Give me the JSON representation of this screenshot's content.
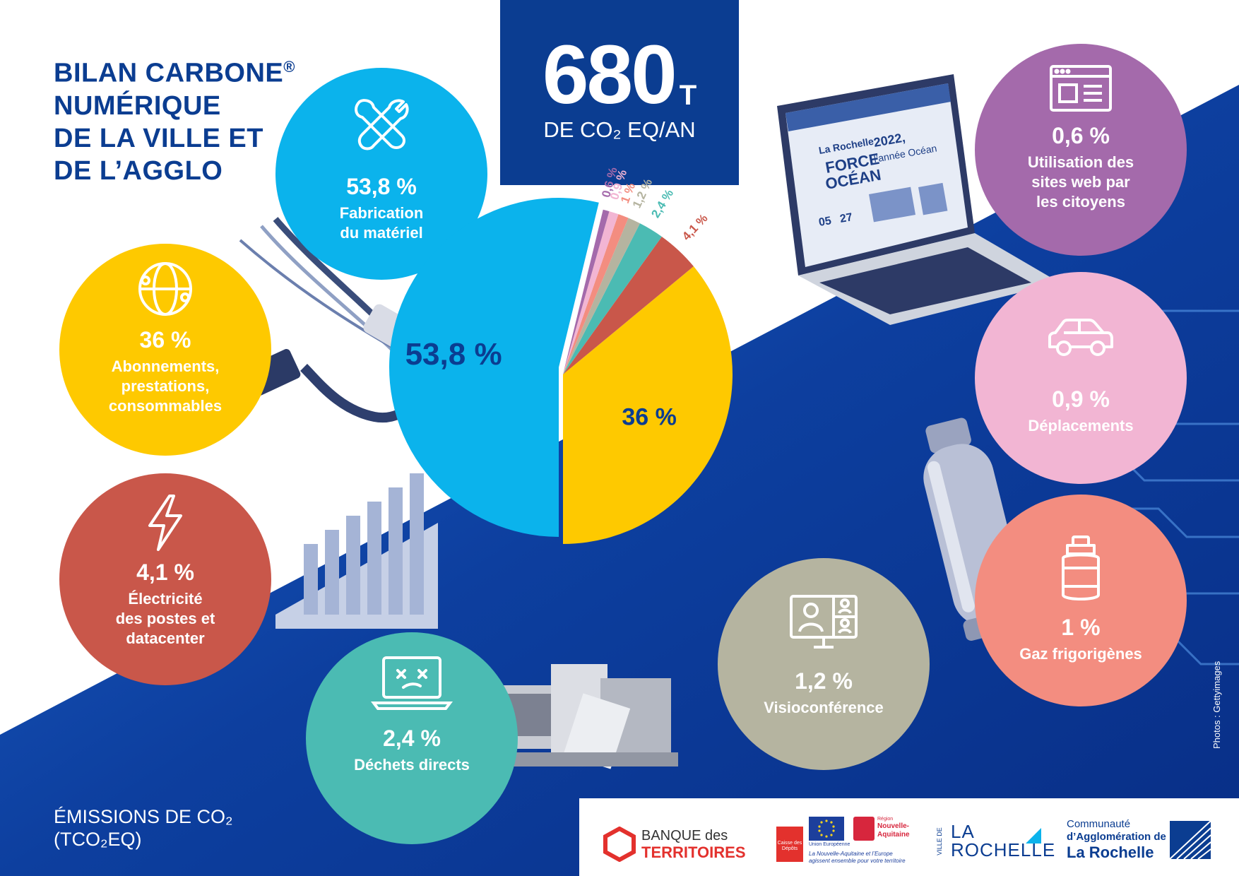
{
  "title": {
    "lines": [
      "BILAN CARBONE",
      "NUMÉRIQUE",
      "DE LA VILLE ET",
      "DE L’AGGLO"
    ],
    "trademark": "®"
  },
  "total": {
    "value": "680",
    "unit_t": "T",
    "unit_line": "DE CO₂ EQ/AN"
  },
  "chart_data": {
    "type": "pie",
    "unit": "%",
    "slices": [
      {
        "label": "Fabrication du matériel",
        "value": 53.8,
        "display": "53,8 %",
        "color": "#0bb3ec"
      },
      {
        "label": "Abonnements, prestations, consommables",
        "value": 36,
        "display": "36 %",
        "color": "#fec900"
      },
      {
        "label": "Électricité des postes et datacenter",
        "value": 4.1,
        "display": "4,1 %",
        "color": "#c9574a"
      },
      {
        "label": "Déchets directs",
        "value": 2.4,
        "display": "2,4 %",
        "color": "#4bbbb3"
      },
      {
        "label": "Visioconférence",
        "value": 1.2,
        "display": "1,2 %",
        "color": "#b5b4a0"
      },
      {
        "label": "Gaz frigorigènes",
        "value": 1,
        "display": "1 %",
        "color": "#f38d80"
      },
      {
        "label": "Déplacements",
        "value": 0.9,
        "display": "0,9 %",
        "color": "#f2b5d3"
      },
      {
        "label": "Utilisation des sites web par les citoyens",
        "value": 0.6,
        "display": "0,6 %",
        "color": "#a46aab"
      }
    ]
  },
  "bubbles": {
    "fabrication": {
      "pct": "53,8 %",
      "label_lines": [
        "Fabrication",
        "du matériel"
      ],
      "icon": "tools-icon",
      "color": "#0bb3ec"
    },
    "abonnements": {
      "pct": "36 %",
      "label_lines": [
        "Abonnements,",
        "prestations,",
        "consommables"
      ],
      "icon": "globe-icon",
      "color": "#fec900"
    },
    "electricite": {
      "pct": "4,1 %",
      "label_lines": [
        "Électricité",
        "des postes et",
        "datacenter"
      ],
      "icon": "lightning-icon",
      "color": "#c9574a"
    },
    "dechets": {
      "pct": "2,4 %",
      "label_lines": [
        "Déchets directs"
      ],
      "icon": "broken-laptop-icon",
      "color": "#4bbbb3"
    },
    "visio": {
      "pct": "1,2 %",
      "label_lines": [
        "Visioconférence"
      ],
      "icon": "video-call-icon",
      "color": "#b5b4a0"
    },
    "gaz": {
      "pct": "1 %",
      "label_lines": [
        "Gaz frigorigènes"
      ],
      "icon": "gas-bottle-icon",
      "color": "#f38d80"
    },
    "deplacements": {
      "pct": "0,9 %",
      "label_lines": [
        "Déplacements"
      ],
      "icon": "car-icon",
      "color": "#f2b5d3"
    },
    "sites_web": {
      "pct": "0,6 %",
      "label_lines": [
        "Utilisation des",
        "sites web par",
        "les citoyens"
      ],
      "icon": "browser-window-icon",
      "color": "#a46aab"
    }
  },
  "emissions_label": {
    "line1": "ÉMISSIONS DE CO₂",
    "line2": "(TCO₂EQ)"
  },
  "laptop_screen": {
    "brand": "La Rochelle",
    "banner1": "FORCE",
    "banner2": "OCÉAN",
    "headline": "2022,",
    "headline2": "l’année Océan",
    "date1": "05",
    "date2": "27"
  },
  "logos": {
    "banque": {
      "line1": "BANQUE des",
      "line2": "TERRITOIRES",
      "sub": "Caisse des Dépôts"
    },
    "europe": {
      "line1": "Union Européenne",
      "line2": "La Nouvelle-Aquitaine et l’Europe",
      "line3": "agissent ensemble pour votre territoire"
    },
    "region": {
      "line1": "Région",
      "line2": "Nouvelle-",
      "line3": "Aquitaine"
    },
    "ville": {
      "prefix": "VILLE DE",
      "line1": "LA",
      "line2": "ROCHELLE"
    },
    "agglo": {
      "line1": "Communauté",
      "line2": "d’Agglomération de",
      "line3": "La Rochelle"
    }
  },
  "photo_credit": "Photos : Gettyimages",
  "colors": {
    "navy": "#0b3d91",
    "background_blue": "#0a3aa0"
  }
}
